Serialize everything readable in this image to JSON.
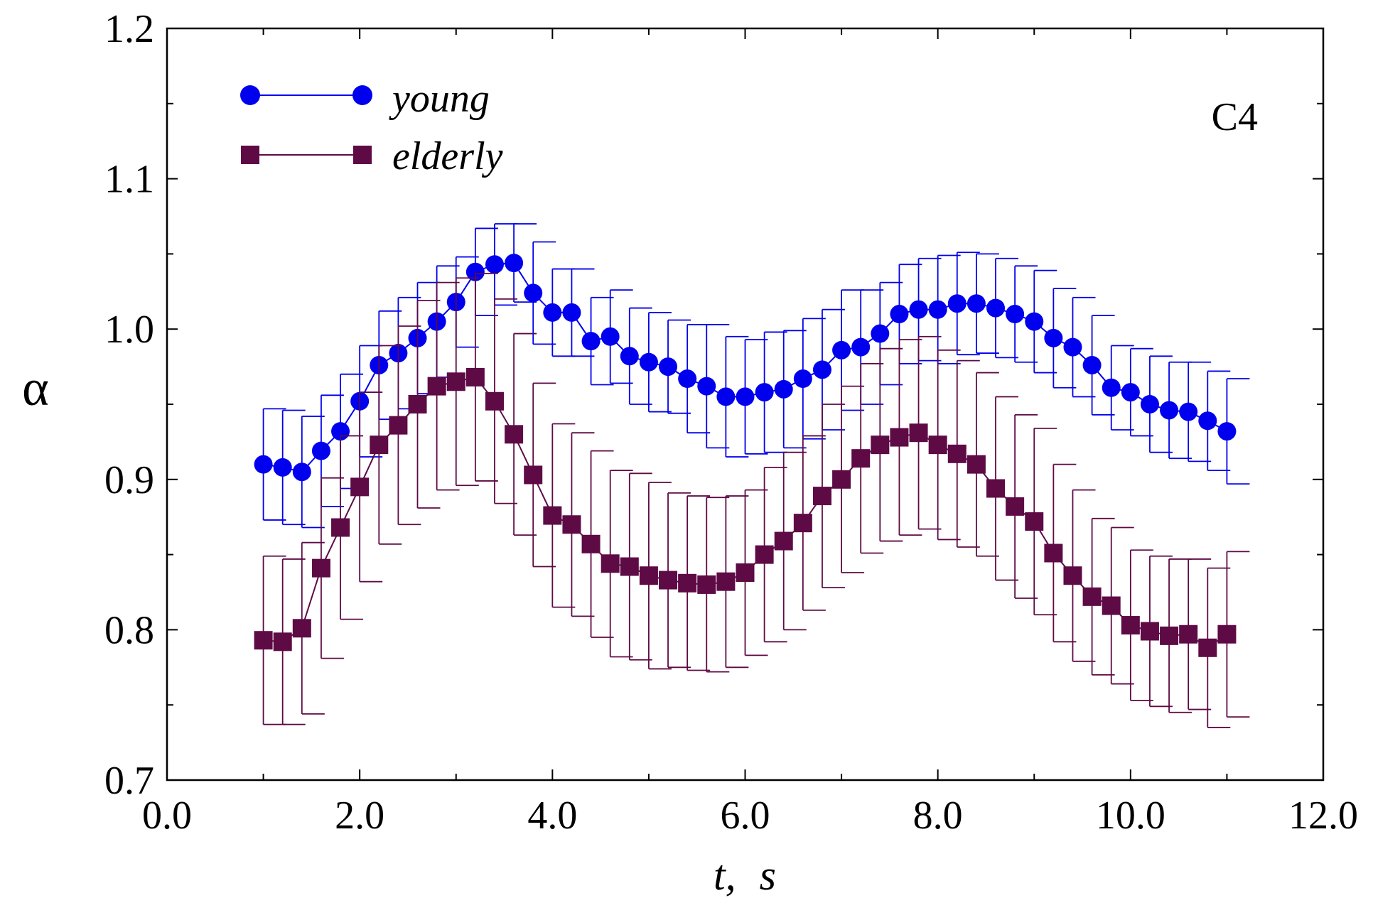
{
  "chart_data": {
    "type": "line",
    "title": "",
    "panel_label": "C4",
    "xlabel_var": "t,",
    "xlabel_unit": "s",
    "ylabel": "α",
    "xlim": [
      0.0,
      12.0
    ],
    "ylim": [
      0.7,
      1.2
    ],
    "x_ticks": [
      "0.0",
      "2.0",
      "4.0",
      "6.0",
      "8.0",
      "10.0",
      "12.0"
    ],
    "y_ticks": [
      "0.7",
      "0.8",
      "0.9",
      "1.0",
      "1.1",
      "1.2"
    ],
    "grid": false,
    "legend_position": "top-left",
    "x": [
      1.0,
      1.2,
      1.4,
      1.6,
      1.8,
      2.0,
      2.2,
      2.4,
      2.6,
      2.8,
      3.0,
      3.2,
      3.4,
      3.6,
      3.8,
      4.0,
      4.2,
      4.4,
      4.6,
      4.8,
      5.0,
      5.2,
      5.4,
      5.6,
      5.8,
      6.0,
      6.2,
      6.4,
      6.6,
      6.8,
      7.0,
      7.2,
      7.4,
      7.6,
      7.8,
      8.0,
      8.2,
      8.4,
      8.6,
      8.8,
      9.0,
      9.2,
      9.4,
      9.6,
      9.8,
      10.0,
      10.2,
      10.4,
      10.6,
      10.8,
      11.0
    ],
    "series": [
      {
        "name": "young",
        "color": "#0000ee",
        "marker": "circle",
        "values": [
          0.91,
          0.908,
          0.905,
          0.919,
          0.932,
          0.952,
          0.976,
          0.984,
          0.994,
          1.005,
          1.018,
          1.038,
          1.043,
          1.044,
          1.024,
          1.011,
          1.011,
          0.992,
          0.995,
          0.982,
          0.978,
          0.975,
          0.967,
          0.962,
          0.955,
          0.955,
          0.958,
          0.96,
          0.967,
          0.973,
          0.986,
          0.988,
          0.997,
          1.01,
          1.013,
          1.013,
          1.017,
          1.017,
          1.014,
          1.01,
          1.005,
          0.994,
          0.988,
          0.976,
          0.961,
          0.958,
          0.95,
          0.946,
          0.945,
          0.939,
          0.932
        ],
        "errors": [
          0.037,
          0.038,
          0.037,
          0.037,
          0.038,
          0.037,
          0.036,
          0.037,
          0.037,
          0.037,
          0.03,
          0.029,
          0.027,
          0.026,
          0.034,
          0.029,
          0.029,
          0.029,
          0.031,
          0.032,
          0.033,
          0.031,
          0.036,
          0.041,
          0.04,
          0.038,
          0.04,
          0.039,
          0.04,
          0.04,
          0.04,
          0.038,
          0.034,
          0.033,
          0.034,
          0.036,
          0.034,
          0.033,
          0.033,
          0.032,
          0.034,
          0.033,
          0.033,
          0.033,
          0.028,
          0.029,
          0.032,
          0.032,
          0.033,
          0.033,
          0.035
        ]
      },
      {
        "name": "elderly",
        "color": "#5e0a45",
        "marker": "square",
        "values": [
          0.793,
          0.792,
          0.801,
          0.841,
          0.868,
          0.895,
          0.923,
          0.936,
          0.95,
          0.962,
          0.965,
          0.968,
          0.952,
          0.93,
          0.903,
          0.876,
          0.87,
          0.857,
          0.844,
          0.842,
          0.836,
          0.833,
          0.831,
          0.83,
          0.832,
          0.838,
          0.85,
          0.859,
          0.871,
          0.889,
          0.9,
          0.914,
          0.923,
          0.928,
          0.931,
          0.923,
          0.917,
          0.91,
          0.894,
          0.882,
          0.872,
          0.851,
          0.836,
          0.822,
          0.816,
          0.803,
          0.799,
          0.796,
          0.797,
          0.788,
          0.797
        ],
        "errors": [
          0.056,
          0.055,
          0.057,
          0.06,
          0.061,
          0.063,
          0.066,
          0.066,
          0.069,
          0.069,
          0.069,
          0.069,
          0.068,
          0.067,
          0.061,
          0.061,
          0.061,
          0.062,
          0.062,
          0.062,
          0.062,
          0.058,
          0.058,
          0.058,
          0.057,
          0.055,
          0.058,
          0.059,
          0.058,
          0.061,
          0.062,
          0.063,
          0.064,
          0.065,
          0.064,
          0.063,
          0.062,
          0.061,
          0.061,
          0.061,
          0.062,
          0.059,
          0.057,
          0.052,
          0.052,
          0.05,
          0.05,
          0.051,
          0.05,
          0.053,
          0.055
        ]
      }
    ]
  }
}
